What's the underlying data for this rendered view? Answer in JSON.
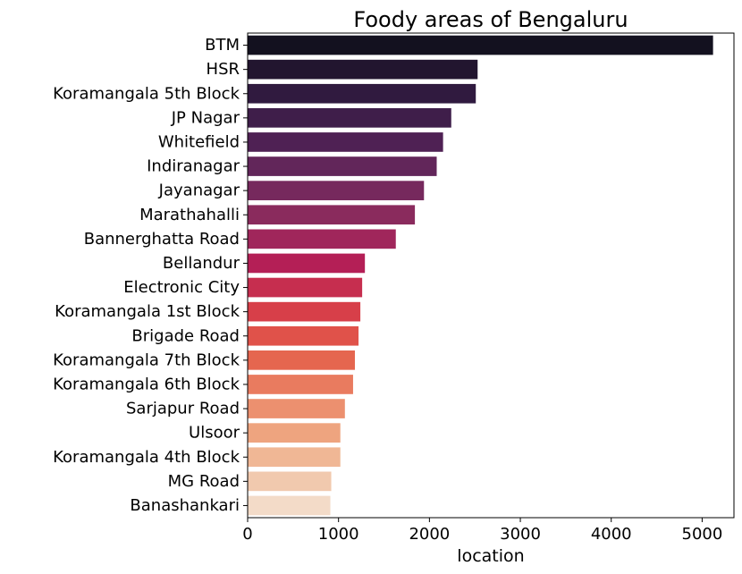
{
  "chart_data": {
    "type": "bar",
    "orientation": "horizontal",
    "title": "Foody areas of Bengaluru",
    "xlabel": "location",
    "ylabel": "",
    "xlim": [
      0,
      5350
    ],
    "xticks": [
      0,
      1000,
      2000,
      3000,
      4000,
      5000
    ],
    "grid": false,
    "categories": [
      "BTM",
      "HSR",
      "Koramangala 5th Block",
      "JP Nagar",
      "Whitefield",
      "Indiranagar",
      "Jayanagar",
      "Marathahalli",
      "Bannerghatta Road",
      "Bellandur",
      "Electronic City",
      "Koramangala 1st Block",
      "Brigade Road",
      "Koramangala 7th Block",
      "Koramangala 6th Block",
      "Sarjapur Road",
      "Ulsoor",
      "Koramangala 4th Block",
      "MG Road",
      "Banashankari"
    ],
    "values": [
      5120,
      2530,
      2510,
      2240,
      2150,
      2080,
      1940,
      1840,
      1630,
      1290,
      1260,
      1240,
      1220,
      1180,
      1160,
      1070,
      1020,
      1020,
      920,
      910
    ],
    "colors": [
      "#13111f",
      "#22152f",
      "#301a3f",
      "#3f1e4a",
      "#4f2154",
      "#62265a",
      "#76295d",
      "#8a2b5d",
      "#a0265b",
      "#b41f56",
      "#c62e4f",
      "#d73f49",
      "#e0524a",
      "#e5664f",
      "#e97b5f",
      "#ec906f",
      "#eea47f",
      "#f0b795",
      "#f1c9ae",
      "#f3dbc8"
    ]
  }
}
